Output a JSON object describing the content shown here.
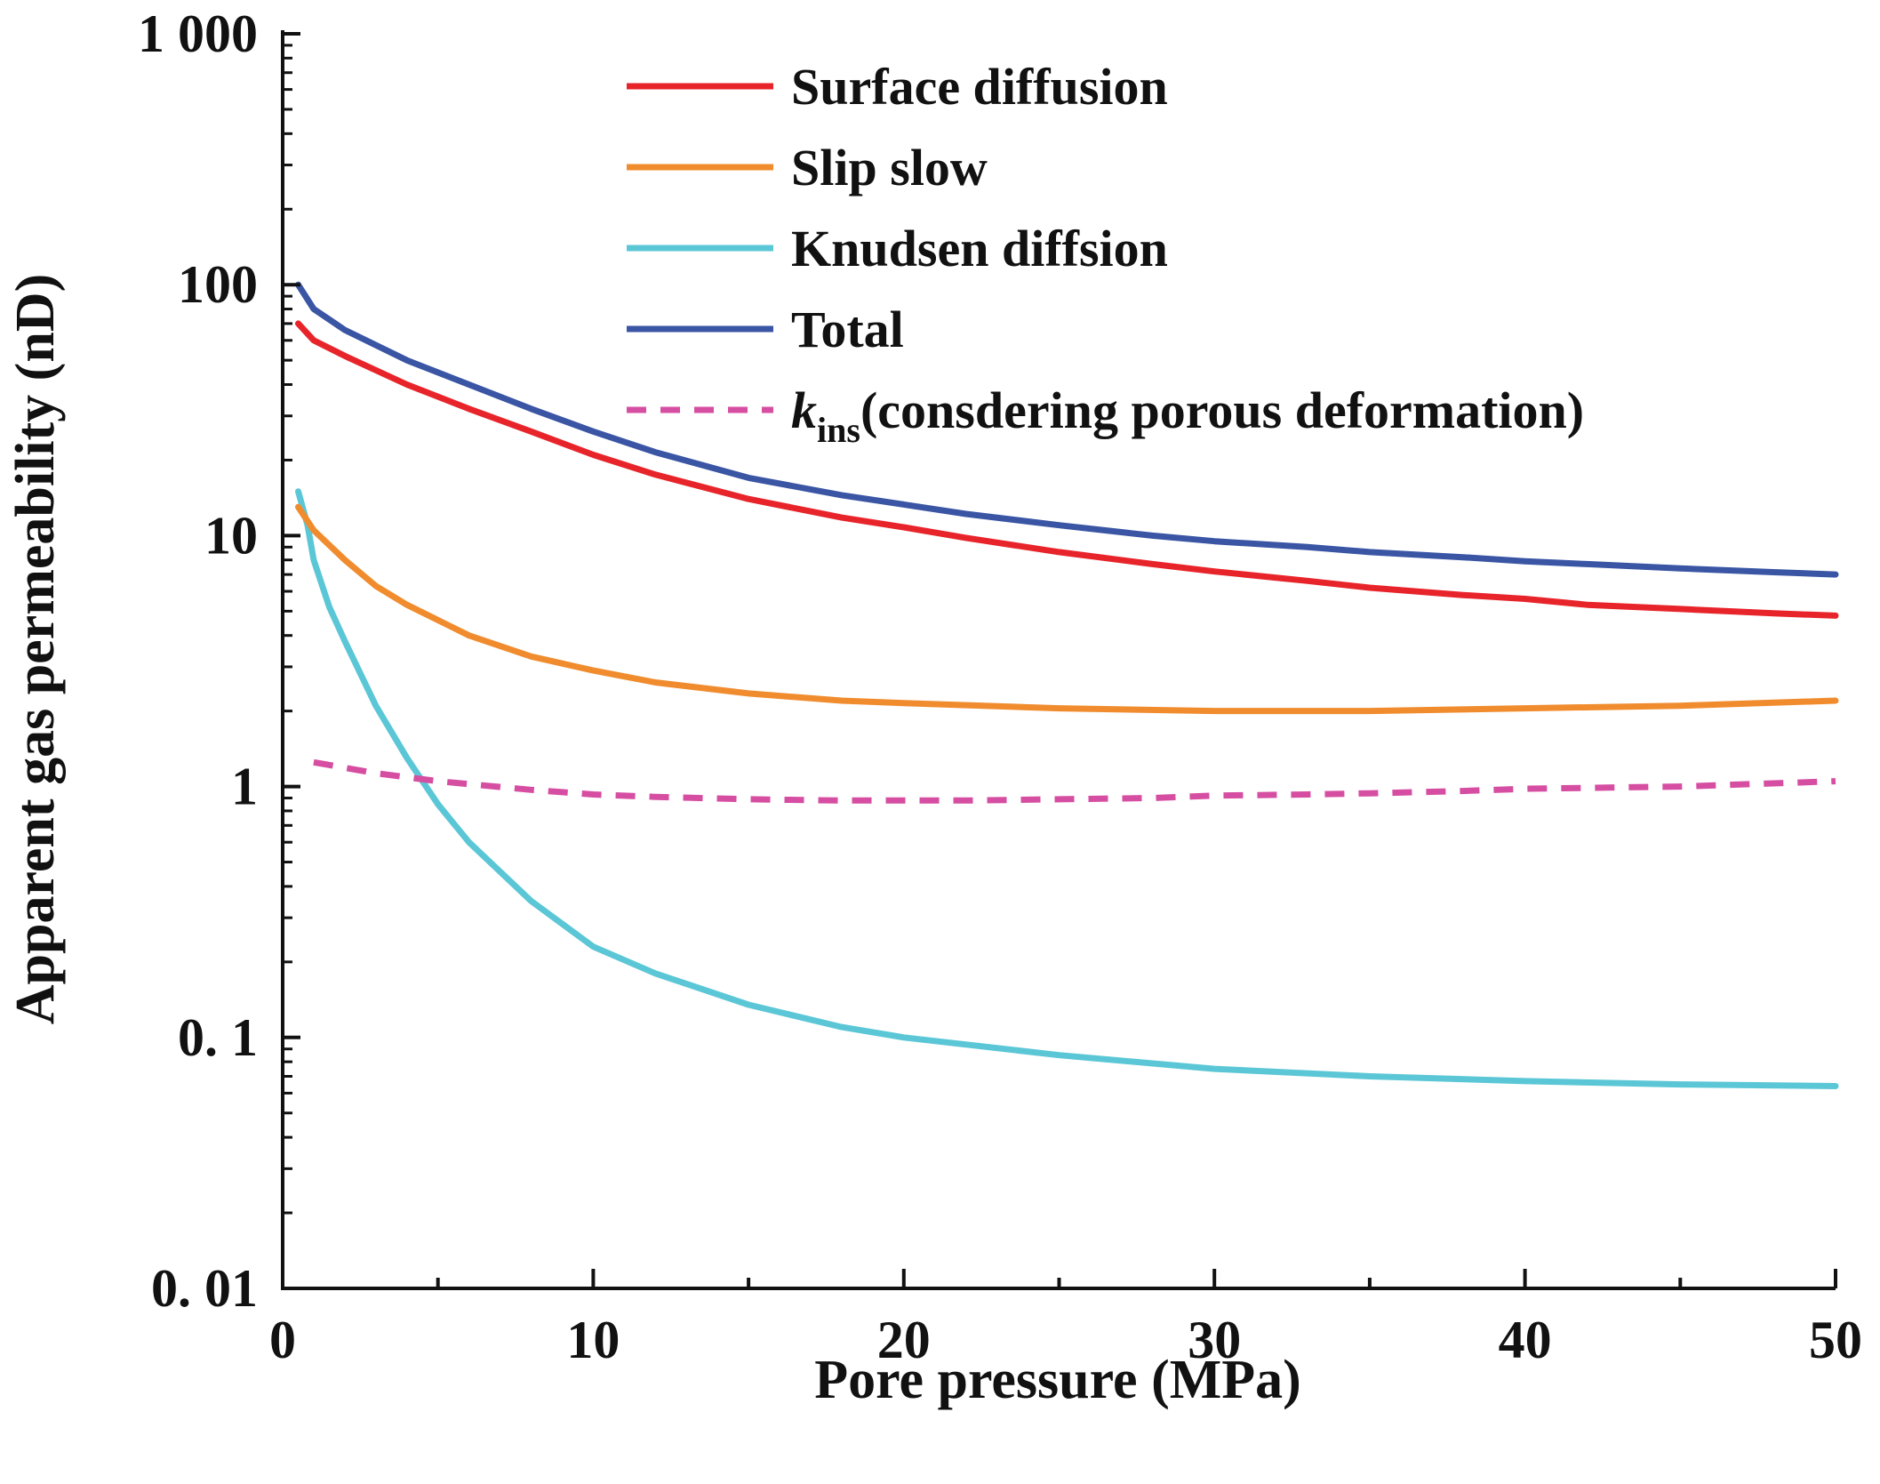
{
  "chart_data": {
    "type": "line",
    "title": "",
    "xlabel": "Pore pressure (MPa)",
    "ylabel": "Apparent gas permeability (nD)",
    "xscale": "linear",
    "yscale": "log",
    "xlim": [
      0,
      50
    ],
    "ylim": [
      0.01,
      1000
    ],
    "xticks": [
      0,
      10,
      20,
      30,
      40,
      50
    ],
    "xtick_labels": [
      "0",
      "10",
      "20",
      "30",
      "40",
      "50"
    ],
    "yticks": [
      0.01,
      0.1,
      1,
      10,
      100,
      1000
    ],
    "ytick_labels": [
      "0. 01",
      "0. 1",
      "1",
      "10",
      "100",
      "1 000"
    ],
    "legend_position": "top-right",
    "series": [
      {
        "name": "Surface diffusion",
        "label_parts": [
          "Surface diffusion"
        ],
        "color": "#e8242b",
        "dash": "solid",
        "x": [
          0.5,
          1,
          2,
          4,
          6,
          8,
          10,
          12,
          15,
          18,
          20,
          22,
          25,
          28,
          30,
          33,
          35,
          38,
          40,
          42,
          45,
          48,
          50
        ],
        "y": [
          70,
          60,
          52,
          40,
          32,
          26,
          21,
          17.5,
          14,
          11.8,
          10.8,
          9.8,
          8.6,
          7.7,
          7.2,
          6.6,
          6.2,
          5.8,
          5.6,
          5.3,
          5.1,
          4.9,
          4.8
        ]
      },
      {
        "name": "Slip slow",
        "label_parts": [
          "Slip slow"
        ],
        "color": "#f08c2e",
        "dash": "solid",
        "x": [
          0.5,
          1,
          2,
          3,
          4,
          6,
          8,
          10,
          12,
          15,
          18,
          20,
          25,
          30,
          35,
          40,
          45,
          50
        ],
        "y": [
          13,
          10.5,
          8,
          6.3,
          5.3,
          4,
          3.3,
          2.9,
          2.6,
          2.35,
          2.2,
          2.15,
          2.05,
          2.0,
          2.0,
          2.05,
          2.1,
          2.2
        ]
      },
      {
        "name": "Knudsen diffsion",
        "label_parts": [
          "Knudsen diffsion"
        ],
        "color": "#5bc7d6",
        "dash": "solid",
        "x": [
          0.5,
          0.8,
          1,
          1.5,
          2,
          3,
          4,
          5,
          6,
          8,
          10,
          12,
          15,
          18,
          20,
          25,
          30,
          35,
          40,
          45,
          50
        ],
        "y": [
          15,
          11,
          8,
          5.2,
          3.8,
          2.1,
          1.3,
          0.85,
          0.6,
          0.35,
          0.23,
          0.18,
          0.135,
          0.11,
          0.1,
          0.085,
          0.075,
          0.07,
          0.067,
          0.065,
          0.064
        ]
      },
      {
        "name": "Total",
        "label_parts": [
          "Total"
        ],
        "color": "#3a55a4",
        "dash": "solid",
        "x": [
          0.5,
          1,
          2,
          4,
          6,
          8,
          10,
          12,
          15,
          18,
          20,
          22,
          25,
          28,
          30,
          33,
          35,
          38,
          40,
          42,
          45,
          48,
          50
        ],
        "y": [
          100,
          80,
          66,
          50,
          40,
          32,
          26,
          21.5,
          17,
          14.5,
          13.3,
          12.2,
          11,
          10,
          9.5,
          9,
          8.6,
          8.2,
          7.9,
          7.7,
          7.4,
          7.15,
          7.0
        ]
      },
      {
        "name": "kins(consdering porous deformation)",
        "label_parts": [
          "k",
          "ins",
          "(consdering porous deformation)"
        ],
        "color": "#d64ea2",
        "dash": "dashed",
        "x": [
          1,
          3,
          5,
          8,
          10,
          12,
          15,
          18,
          20,
          22,
          25,
          28,
          30,
          33,
          35,
          38,
          40,
          45,
          50
        ],
        "y": [
          1.25,
          1.13,
          1.05,
          0.97,
          0.93,
          0.91,
          0.89,
          0.88,
          0.88,
          0.88,
          0.89,
          0.9,
          0.92,
          0.93,
          0.94,
          0.96,
          0.98,
          1.0,
          1.05
        ]
      }
    ]
  }
}
